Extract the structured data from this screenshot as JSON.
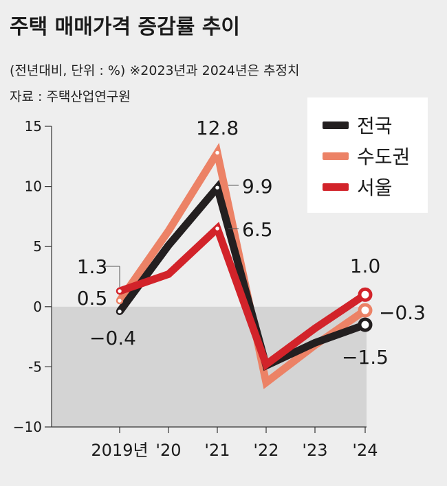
{
  "title": "주택 매매가격 증감률 추이",
  "subtitle": "(전년대비, 단위 : %)  ※2023년과 2024년은 추정치",
  "source": "자료 : 주택산업연구원",
  "colors": {
    "nationwide": "#231f20",
    "capital_area": "#ec8266",
    "seoul": "#d2232a",
    "negative_region": "#d4d4d4",
    "background": "#eeeeee"
  },
  "chart_data": {
    "type": "line",
    "categories": [
      "2019년",
      "'20",
      "'21",
      "'22",
      "'23",
      "'24"
    ],
    "ylim": [
      -10,
      15
    ],
    "yticks": [
      15,
      10,
      5,
      0,
      -5,
      -10
    ],
    "ytick_labels": [
      "15",
      "10",
      "5",
      "0",
      "-5",
      "−10"
    ],
    "grid": false,
    "legend_position": "top-right",
    "series": [
      {
        "name": "수도권",
        "key": "capital_area",
        "values": [
          0.5,
          6.3,
          12.8,
          -6.3,
          -3.2,
          -0.3
        ]
      },
      {
        "name": "전국",
        "key": "nationwide",
        "values": [
          -0.4,
          5.1,
          9.9,
          -4.9,
          -3.0,
          -1.5
        ]
      },
      {
        "name": "서울",
        "key": "seoul",
        "values": [
          1.3,
          2.7,
          6.5,
          -4.8,
          -1.8,
          1.0
        ]
      }
    ],
    "data_labels": [
      {
        "text": "1.3",
        "series": "seoul",
        "index": 0
      },
      {
        "text": "0.5",
        "series": "capital_area",
        "index": 0
      },
      {
        "text": "−0.4",
        "series": "nationwide",
        "index": 0
      },
      {
        "text": "12.8",
        "series": "capital_area",
        "index": 2
      },
      {
        "text": "9.9",
        "series": "nationwide",
        "index": 2
      },
      {
        "text": "6.5",
        "series": "seoul",
        "index": 2
      },
      {
        "text": "1.0",
        "series": "seoul",
        "index": 5
      },
      {
        "text": "−0.3",
        "series": "capital_area",
        "index": 5
      },
      {
        "text": "−1.5",
        "series": "nationwide",
        "index": 5
      }
    ]
  },
  "legend": [
    {
      "label": "전국",
      "key": "nationwide"
    },
    {
      "label": "수도권",
      "key": "capital_area"
    },
    {
      "label": "서울",
      "key": "seoul"
    }
  ]
}
